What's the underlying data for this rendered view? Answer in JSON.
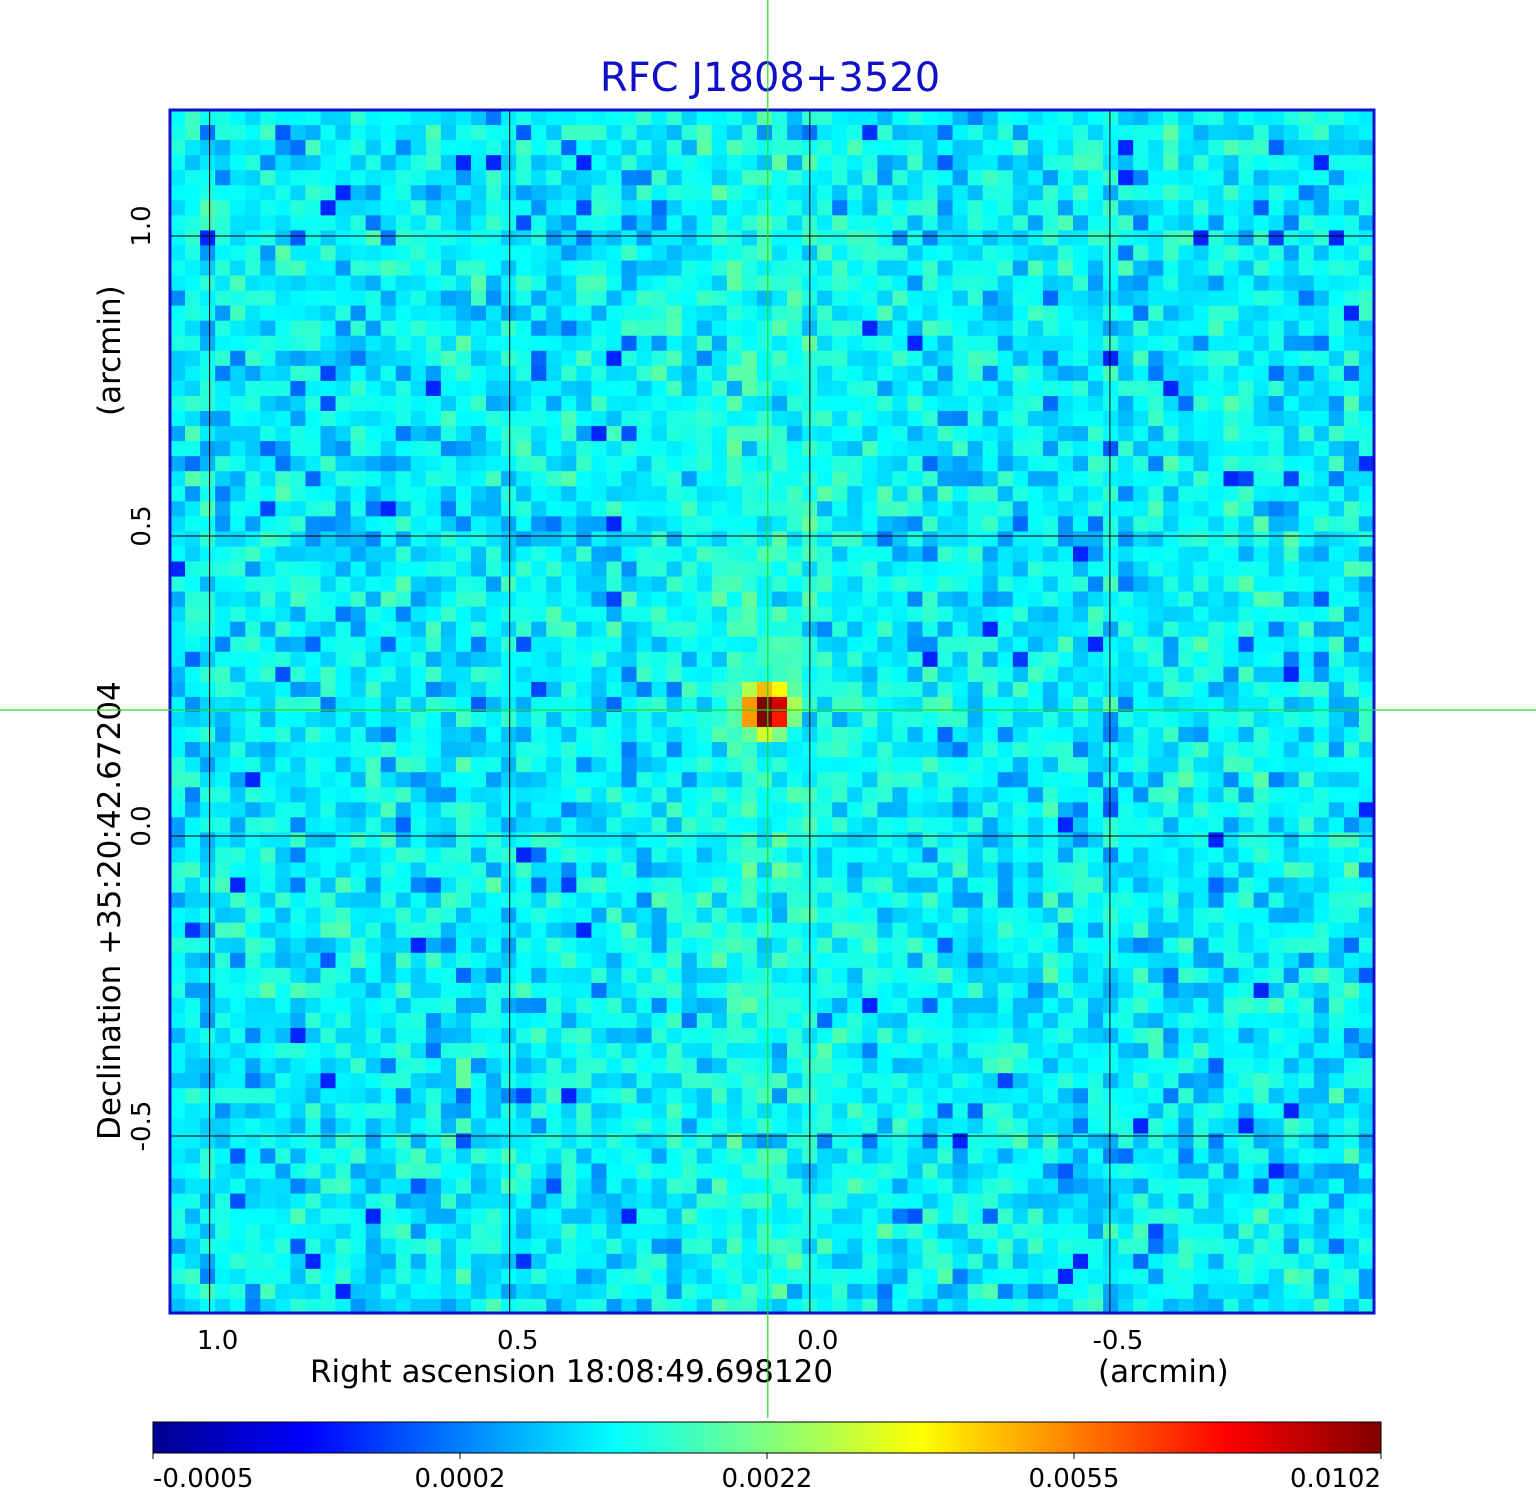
{
  "chart_data": {
    "type": "heatmap",
    "title": "RFC J1808+3520",
    "xlabel": "Right ascension  18:08:49.698120",
    "xunit": "(arcmin)",
    "ylabel": "Declination  +35:20:42.67204",
    "yunit": "(arcmin)",
    "xlim": [
      1.066,
      -0.94
    ],
    "ylim": [
      -0.795,
      1.21
    ],
    "xticks": [
      1.0,
      0.5,
      0.0,
      -0.5
    ],
    "xtick_labels": [
      "1.0",
      "0.5",
      "0.0",
      "-0.5"
    ],
    "yticks": [
      1.0,
      0.5,
      0.0,
      -0.5
    ],
    "ytick_labels": [
      "1.0",
      "0.5",
      "0.0",
      "-0.5"
    ],
    "grid": true,
    "colormap": "jet",
    "colorbar_ticks": [
      "-0.0005",
      "0.0002",
      "0.0022",
      "0.0055",
      "0.0102"
    ],
    "colorbar_range": [
      -0.0005,
      0.0102
    ],
    "source": {
      "x": 0.07,
      "y": 0.21,
      "peak": 0.0102
    },
    "crosshair": {
      "x": 0.07,
      "y": 0.21,
      "color": "#22dd22"
    },
    "background_level": 0.0
  }
}
